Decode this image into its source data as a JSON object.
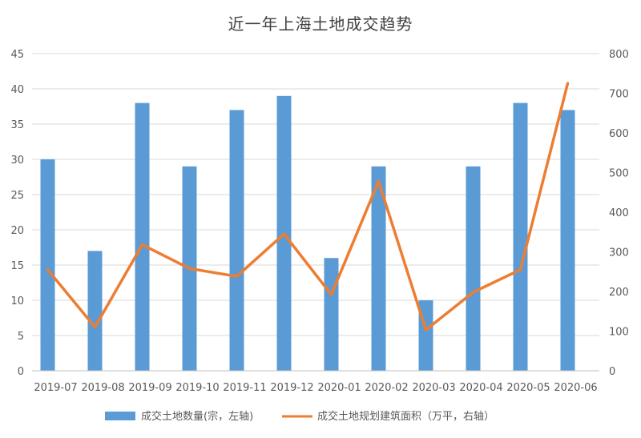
{
  "chart_data": {
    "type": "bar",
    "title": "近一年上海土地成交趋势",
    "categories": [
      "2019-07",
      "2019-08",
      "2019-09",
      "2019-10",
      "2019-11",
      "2019-12",
      "2020-01",
      "2020-02",
      "2020-03",
      "2020-04",
      "2020-05",
      "2020-06"
    ],
    "series": [
      {
        "name": "成交土地数量(宗，左轴)",
        "type": "bar",
        "axis": "left",
        "color": "#5b9bd5",
        "values": [
          30,
          17,
          38,
          29,
          37,
          39,
          16,
          29,
          10,
          29,
          38,
          37
        ]
      },
      {
        "name": "成交土地规划建筑面积（万平，右轴）",
        "type": "line",
        "axis": "right",
        "color": "#ed7d31",
        "values": [
          255,
          110,
          318,
          258,
          238,
          345,
          192,
          478,
          103,
          198,
          255,
          725
        ]
      }
    ],
    "left_axis": {
      "min": 0,
      "max": 45,
      "step": 5
    },
    "right_axis": {
      "min": 0,
      "max": 800,
      "step": 100
    },
    "grid": true,
    "legend_position": "bottom"
  }
}
